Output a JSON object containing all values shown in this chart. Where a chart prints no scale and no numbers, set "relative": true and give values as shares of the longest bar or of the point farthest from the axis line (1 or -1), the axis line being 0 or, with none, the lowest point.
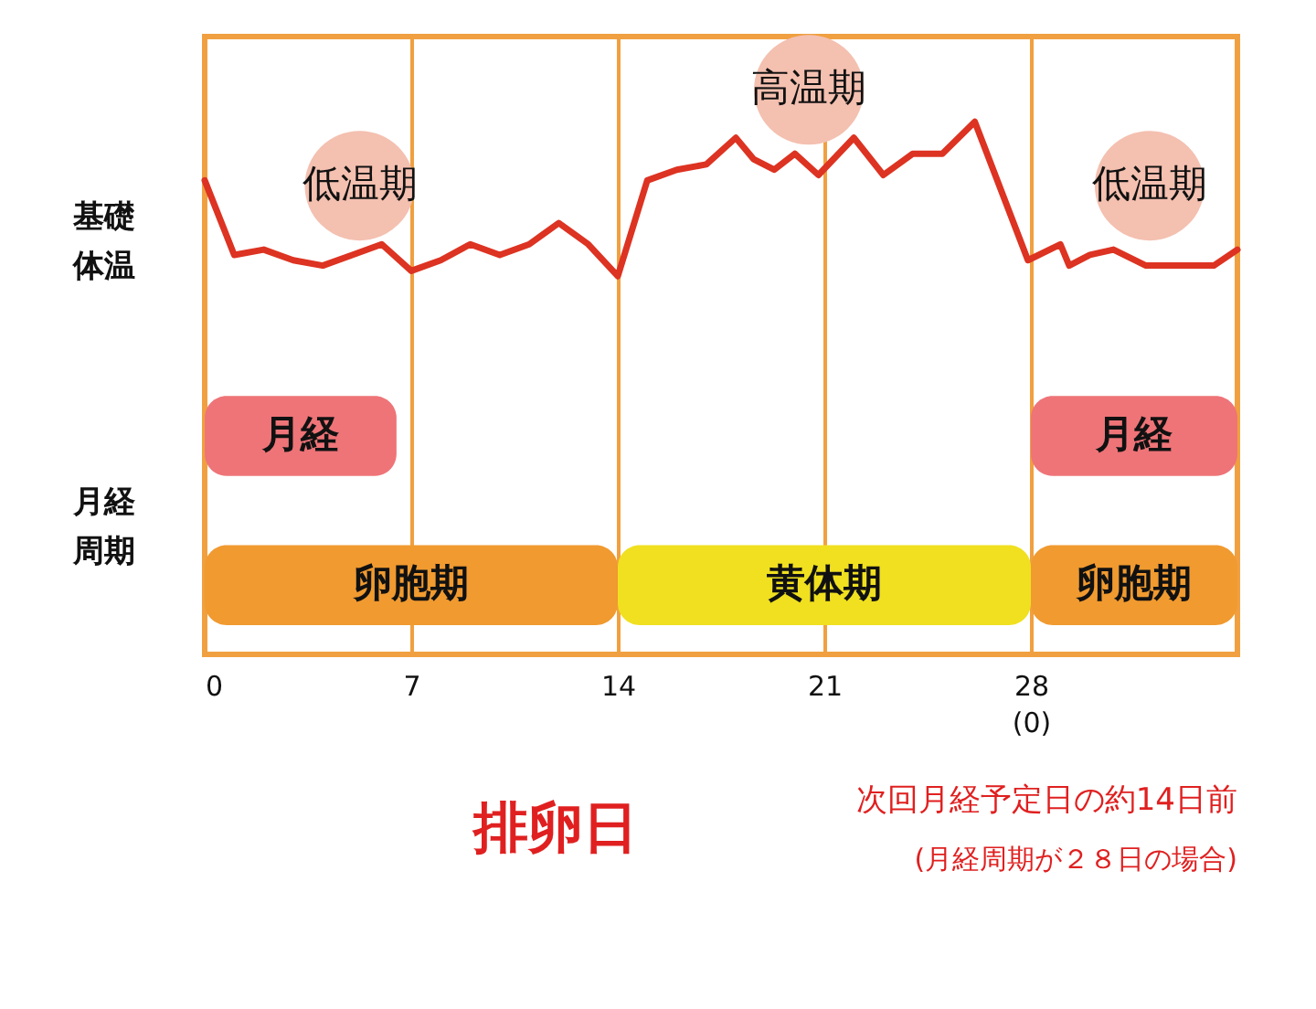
{
  "chart_data": {
    "type": "line",
    "relative": true,
    "ylabel": "基礎体温",
    "grid": "x",
    "xlim": [
      0,
      35
    ],
    "xticks": [
      0,
      7,
      14,
      21,
      {
        "value": 28,
        "label": "28\n(0)"
      }
    ],
    "x": [
      0,
      1,
      2,
      3,
      4,
      5,
      6,
      7,
      8,
      9,
      10,
      11,
      12,
      13,
      14,
      15,
      16,
      17,
      18,
      18.6,
      19.3,
      20,
      20.8,
      22,
      23,
      24,
      25,
      26.1,
      27.9,
      29,
      29.3,
      30,
      30.8,
      31.9,
      33,
      34.2,
      35
    ],
    "series": [
      {
        "color": "#dd3322",
        "values": [
          0.89,
          0.75,
          0.76,
          0.74,
          0.73,
          0.75,
          0.77,
          0.72,
          0.74,
          0.77,
          0.75,
          0.77,
          0.81,
          0.77,
          0.71,
          0.89,
          0.91,
          0.92,
          0.97,
          0.93,
          0.91,
          0.94,
          0.9,
          0.97,
          0.9,
          0.94,
          0.94,
          1,
          0.74,
          0.77,
          0.73,
          0.75,
          0.76,
          0.73,
          0.73,
          0.73,
          0.76
        ]
      }
    ],
    "bands": [
      {
        "axis": "x",
        "from": 0,
        "to": 14,
        "label": "卵胞期",
        "color": "#f09a30"
      },
      {
        "axis": "x",
        "from": 14,
        "to": 28,
        "label": "黄体期",
        "color": "#f0e020"
      },
      {
        "axis": "x",
        "from": 28,
        "to": 35,
        "label": "卵胞期",
        "color": "#f09a30"
      },
      {
        "axis": "x",
        "from": 0,
        "to": 6.5,
        "label": "月経",
        "color": "#ee7478"
      },
      {
        "axis": "x",
        "from": 28,
        "to": 35,
        "label": "月経",
        "color": "#ee7478"
      }
    ],
    "annotations": [
      "低温期",
      "高温期",
      "低温期",
      "排卵日",
      "月経周期",
      "次回月経予定日の約14日前",
      "(月経周期が２８日の場合)"
    ]
  }
}
